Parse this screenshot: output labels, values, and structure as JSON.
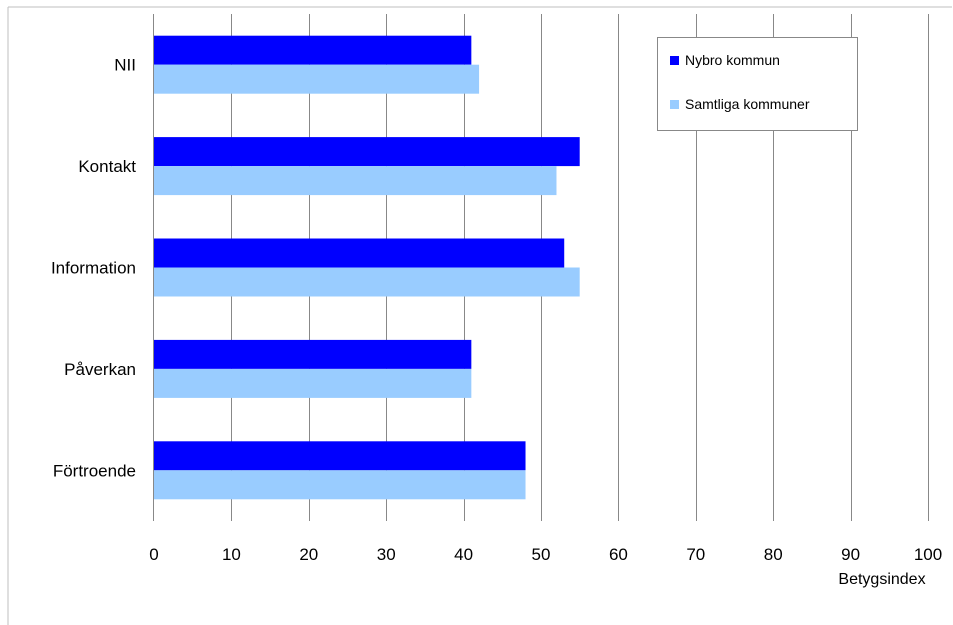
{
  "chart_data": {
    "type": "bar",
    "orientation": "horizontal",
    "categories": [
      "NII",
      "Kontakt",
      "Information",
      "Påverkan",
      "Förtroende"
    ],
    "series": [
      {
        "name": "Nybro kommun",
        "color": "#0000ff",
        "values": [
          41,
          55,
          53,
          41,
          48
        ]
      },
      {
        "name": "Samtliga kommuner",
        "color": "#99ccff",
        "values": [
          42,
          52,
          55,
          41,
          48
        ]
      }
    ],
    "xlim": [
      0,
      100
    ],
    "xticks": [
      0,
      10,
      20,
      30,
      40,
      50,
      60,
      70,
      80,
      90,
      100
    ],
    "xlabel": "Betygsindex",
    "grid": "vertical",
    "legend_position": "top-right"
  }
}
